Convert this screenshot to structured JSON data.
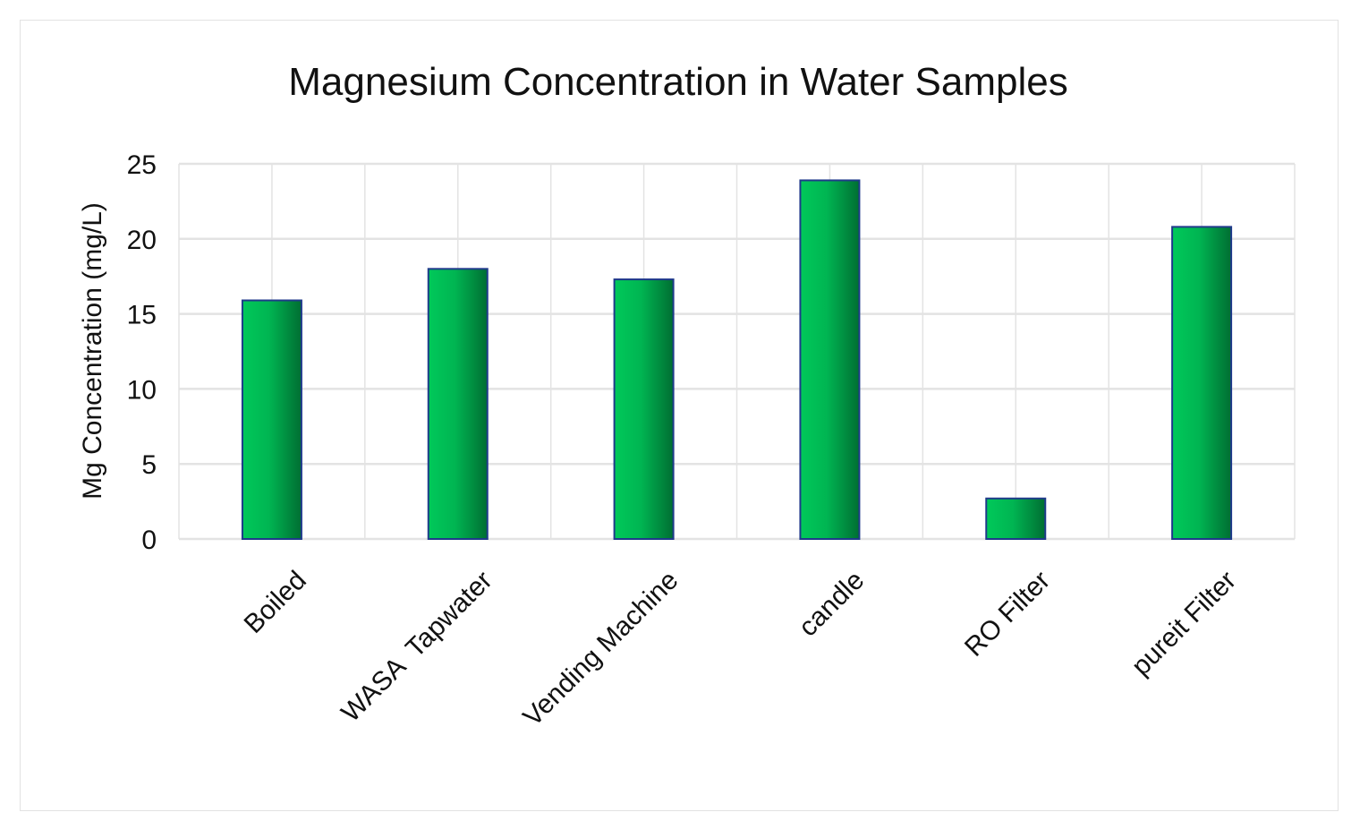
{
  "chart_data": {
    "type": "bar",
    "title": "Magnesium Concentration in Water Samples",
    "xlabel": "",
    "ylabel": "Mg Concentration (mg/L)",
    "categories": [
      "Boiled",
      "WASA  Tapwater",
      "Vending Machine",
      "candle",
      "RO Filter",
      "pureit Filter"
    ],
    "values": [
      15.9,
      18.0,
      17.3,
      23.9,
      2.7,
      20.8
    ],
    "ylim": [
      0,
      25
    ],
    "yticks": [
      0,
      5,
      10,
      15,
      20,
      25
    ],
    "grid": true,
    "legend": "none",
    "colors": {
      "bar_light": "#00c95a",
      "bar_dark": "#006e32",
      "bar_edge": "#1f3a8a",
      "grid": "#e3e3e3"
    }
  }
}
